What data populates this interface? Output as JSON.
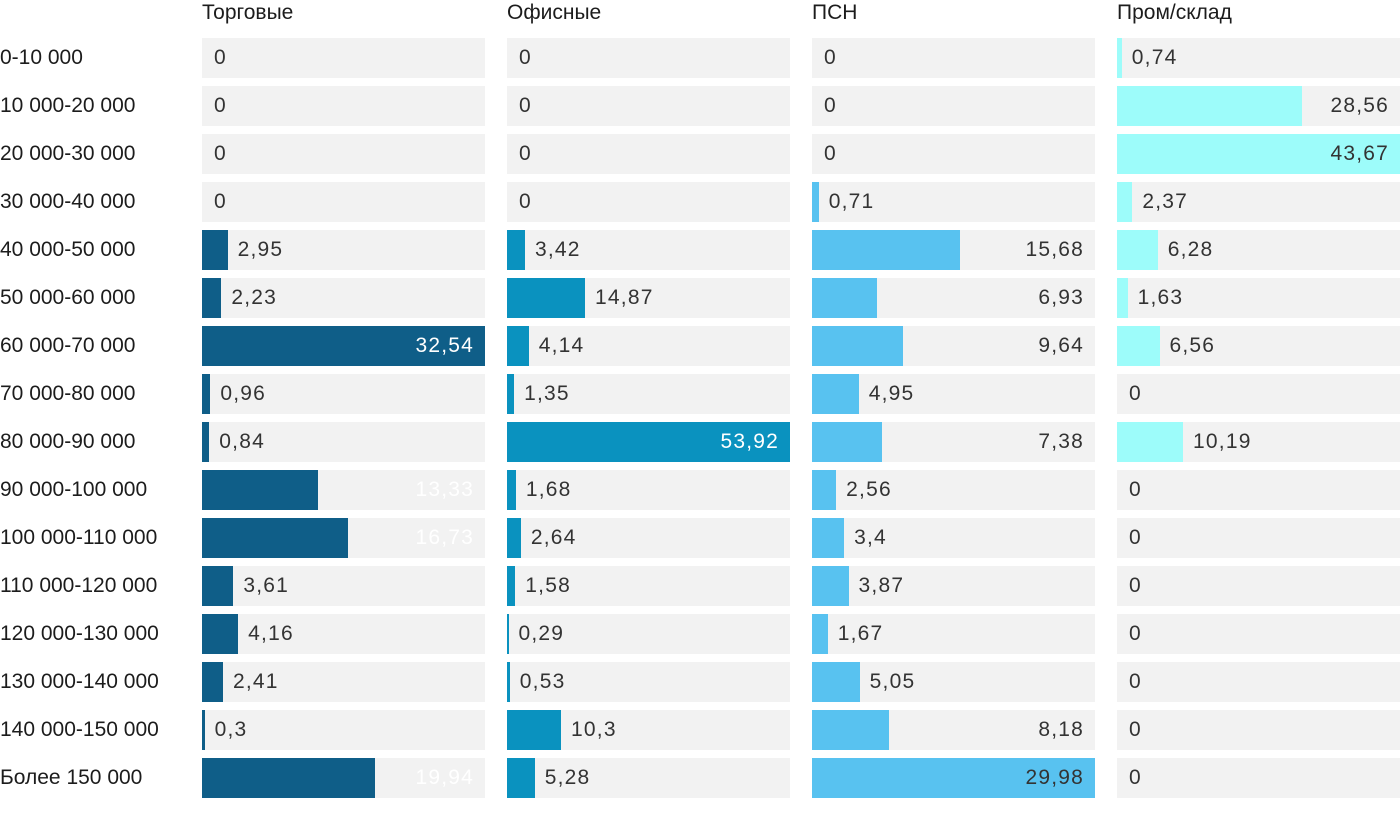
{
  "chart_data": {
    "type": "bar",
    "orientation": "horizontal",
    "title": "",
    "categories": [
      "0-10 000",
      "10 000-20 000",
      "20 000-30 000",
      "30 000-40 000",
      "40 000-50 000",
      "50 000-60 000",
      "60 000-70 000",
      "70 000-80 000",
      "80 000-90 000",
      "90 000-100 000",
      "100 000-110 000",
      "110 000-120 000",
      "120 000-130 000",
      "130 000-140 000",
      "140 000-150 000",
      "Более 150 000"
    ],
    "series": [
      {
        "name": "Торговые",
        "color": "#0f5e88",
        "inside_label_color": "#ffffff",
        "values": [
          0,
          0,
          0,
          0,
          2.95,
          2.23,
          32.54,
          0.96,
          0.84,
          13.33,
          16.73,
          3.61,
          4.16,
          2.41,
          0.3,
          19.94
        ],
        "labels_inside": [
          false,
          false,
          false,
          false,
          false,
          false,
          true,
          false,
          false,
          true,
          true,
          false,
          false,
          false,
          false,
          true
        ]
      },
      {
        "name": "Офисные",
        "color": "#0a92bf",
        "inside_label_color": "#ffffff",
        "values": [
          0,
          0,
          0,
          0,
          3.42,
          14.87,
          4.14,
          1.35,
          53.92,
          1.68,
          2.64,
          1.58,
          0.29,
          0.53,
          10.3,
          5.28
        ],
        "labels_inside": [
          false,
          false,
          false,
          false,
          false,
          false,
          false,
          false,
          true,
          false,
          false,
          false,
          false,
          false,
          false,
          false
        ]
      },
      {
        "name": "ПСН",
        "color": "#58c2f0",
        "inside_label_color": "#333333",
        "values": [
          0,
          0,
          0,
          0.71,
          15.68,
          6.93,
          9.64,
          4.95,
          7.38,
          2.56,
          3.4,
          3.87,
          1.67,
          5.05,
          8.18,
          29.98
        ],
        "labels_inside": [
          false,
          false,
          false,
          false,
          true,
          true,
          true,
          false,
          true,
          false,
          false,
          false,
          false,
          false,
          true,
          true
        ]
      },
      {
        "name": "Пром/склад",
        "color": "#9dfcfa",
        "inside_label_color": "#333333",
        "values": [
          0.74,
          28.56,
          43.67,
          2.37,
          6.28,
          1.63,
          6.56,
          0,
          10.19,
          0,
          0,
          0,
          0,
          0,
          0,
          0
        ],
        "labels_inside": [
          false,
          true,
          true,
          false,
          false,
          false,
          false,
          false,
          false,
          false,
          false,
          false,
          false,
          false,
          false,
          false
        ]
      }
    ],
    "scaling": "per_column_max",
    "column_max": [
      32.54,
      53.92,
      29.98,
      43.67
    ],
    "decimal_separator": ",",
    "track_color": "#f2f2f2",
    "value_text_color": "#333333",
    "label_text_color": "#1c1c1c"
  }
}
